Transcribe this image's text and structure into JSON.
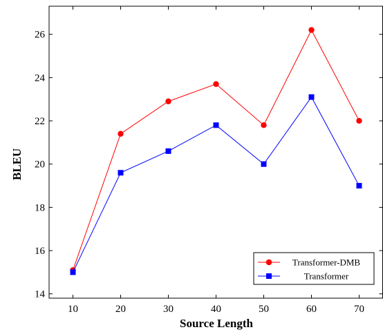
{
  "chart_data": {
    "type": "line",
    "title": "",
    "xlabel": "Source Length",
    "ylabel": "BLEU",
    "x": [
      10,
      20,
      30,
      40,
      50,
      60,
      70
    ],
    "xlim": [
      5,
      75
    ],
    "ylim": [
      13.8,
      27.3
    ],
    "xticks": [
      10,
      20,
      30,
      40,
      50,
      60,
      70
    ],
    "yticks": [
      14,
      16,
      18,
      20,
      22,
      24,
      26
    ],
    "grid": false,
    "legend_position": "bottom-right",
    "series": [
      {
        "name": "Transformer-DMB",
        "color": "#ff0000",
        "marker": "circle",
        "values": [
          15.1,
          21.4,
          22.9,
          23.7,
          21.8,
          26.2,
          22.0
        ]
      },
      {
        "name": "Transformer",
        "color": "#0000ff",
        "marker": "square",
        "values": [
          15.0,
          19.6,
          20.6,
          21.8,
          20.0,
          23.1,
          19.0
        ]
      }
    ]
  }
}
